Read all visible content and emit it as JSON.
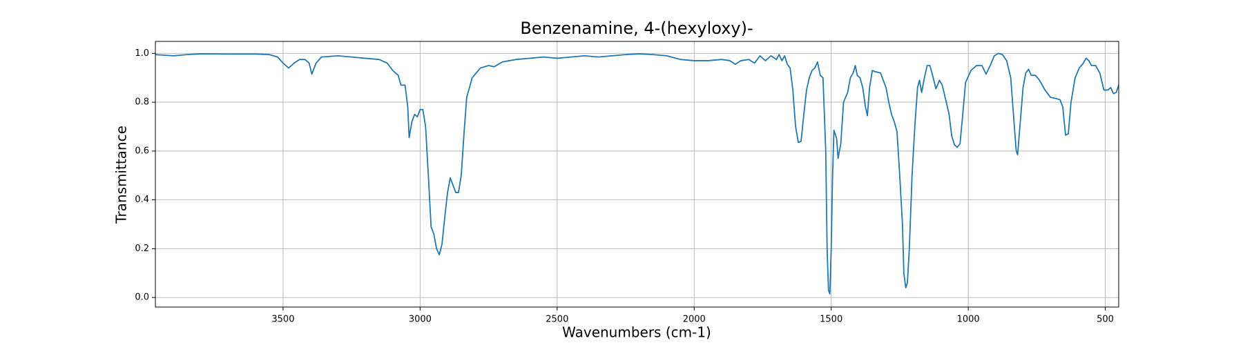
{
  "chart_data": {
    "type": "line",
    "title": "Benzenamine, 4-(hexyloxy)-",
    "xlabel": "Wavenumbers (cm-1)",
    "ylabel": "Transmittance",
    "color": "#1f77b4",
    "grid": true,
    "xlim": [
      3966,
      451
    ],
    "ylim": [
      -0.039,
      1.049
    ],
    "xticks": [
      3500,
      3000,
      2500,
      2000,
      1500,
      1000,
      500
    ],
    "yticks": [
      {
        "value": 0,
        "label": "0.0"
      },
      0.2,
      0.4,
      0.6,
      0.8,
      {
        "value": 1,
        "label": "1.0"
      }
    ],
    "x": [
      3966,
      3900,
      3850,
      3800,
      3700,
      3600,
      3550,
      3520,
      3500,
      3480,
      3460,
      3440,
      3420,
      3405,
      3395,
      3380,
      3360,
      3300,
      3250,
      3200,
      3150,
      3120,
      3100,
      3080,
      3070,
      3055,
      3045,
      3040,
      3030,
      3020,
      3010,
      3000,
      2990,
      2980,
      2970,
      2960,
      2950,
      2940,
      2930,
      2920,
      2910,
      2900,
      2890,
      2880,
      2870,
      2860,
      2850,
      2840,
      2830,
      2810,
      2780,
      2750,
      2730,
      2700,
      2650,
      2600,
      2550,
      2500,
      2450,
      2400,
      2350,
      2300,
      2250,
      2200,
      2150,
      2100,
      2050,
      2000,
      1950,
      1900,
      1870,
      1850,
      1830,
      1800,
      1780,
      1760,
      1740,
      1720,
      1700,
      1690,
      1680,
      1670,
      1660,
      1650,
      1640,
      1630,
      1620,
      1610,
      1600,
      1590,
      1580,
      1570,
      1560,
      1550,
      1540,
      1530,
      1520,
      1515,
      1510,
      1505,
      1500,
      1495,
      1490,
      1480,
      1475,
      1465,
      1455,
      1440,
      1430,
      1420,
      1412,
      1405,
      1395,
      1385,
      1375,
      1368,
      1360,
      1350,
      1340,
      1320,
      1300,
      1290,
      1280,
      1270,
      1260,
      1250,
      1240,
      1235,
      1228,
      1222,
      1215,
      1205,
      1195,
      1185,
      1178,
      1170,
      1160,
      1150,
      1140,
      1130,
      1118,
      1105,
      1095,
      1080,
      1070,
      1060,
      1050,
      1040,
      1030,
      1020,
      1010,
      990,
      970,
      950,
      935,
      920,
      905,
      890,
      875,
      860,
      845,
      835,
      825,
      820,
      810,
      800,
      790,
      780,
      770,
      755,
      740,
      720,
      700,
      680,
      665,
      655,
      645,
      635,
      625,
      610,
      595,
      580,
      570,
      560,
      550,
      535,
      520,
      505,
      490,
      480,
      470,
      460,
      451
    ],
    "values": [
      0.995,
      0.99,
      0.995,
      0.998,
      0.997,
      0.997,
      0.995,
      0.985,
      0.96,
      0.94,
      0.96,
      0.975,
      0.975,
      0.96,
      0.915,
      0.96,
      0.985,
      0.99,
      0.985,
      0.98,
      0.975,
      0.96,
      0.93,
      0.91,
      0.87,
      0.87,
      0.78,
      0.655,
      0.72,
      0.75,
      0.74,
      0.77,
      0.77,
      0.7,
      0.5,
      0.29,
      0.26,
      0.2,
      0.175,
      0.22,
      0.33,
      0.43,
      0.49,
      0.46,
      0.43,
      0.43,
      0.5,
      0.67,
      0.82,
      0.9,
      0.94,
      0.95,
      0.945,
      0.965,
      0.975,
      0.98,
      0.985,
      0.98,
      0.985,
      0.99,
      0.985,
      0.99,
      0.995,
      0.998,
      0.995,
      0.99,
      0.975,
      0.97,
      0.97,
      0.975,
      0.97,
      0.955,
      0.97,
      0.975,
      0.96,
      0.99,
      0.97,
      0.99,
      0.975,
      0.995,
      0.97,
      0.99,
      0.955,
      0.94,
      0.85,
      0.7,
      0.635,
      0.64,
      0.75,
      0.85,
      0.9,
      0.93,
      0.94,
      0.965,
      0.91,
      0.9,
      0.6,
      0.2,
      0.03,
      0.015,
      0.2,
      0.5,
      0.685,
      0.65,
      0.57,
      0.63,
      0.8,
      0.84,
      0.9,
      0.92,
      0.95,
      0.91,
      0.9,
      0.86,
      0.78,
      0.745,
      0.86,
      0.93,
      0.925,
      0.92,
      0.86,
      0.8,
      0.75,
      0.72,
      0.68,
      0.5,
      0.3,
      0.1,
      0.04,
      0.06,
      0.2,
      0.5,
      0.7,
      0.86,
      0.89,
      0.84,
      0.9,
      0.95,
      0.95,
      0.91,
      0.855,
      0.89,
      0.87,
      0.8,
      0.75,
      0.66,
      0.625,
      0.615,
      0.63,
      0.75,
      0.88,
      0.93,
      0.95,
      0.95,
      0.915,
      0.95,
      0.99,
      1.0,
      0.995,
      0.97,
      0.9,
      0.75,
      0.6,
      0.585,
      0.72,
      0.86,
      0.92,
      0.935,
      0.91,
      0.91,
      0.89,
      0.85,
      0.82,
      0.815,
      0.81,
      0.78,
      0.665,
      0.67,
      0.8,
      0.9,
      0.94,
      0.96,
      0.98,
      0.97,
      0.95,
      0.95,
      0.92,
      0.85,
      0.85,
      0.86,
      0.835,
      0.84,
      0.87
    ]
  }
}
